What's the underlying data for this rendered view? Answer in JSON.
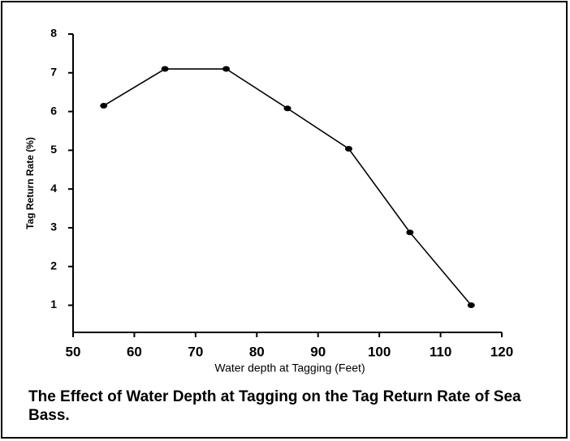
{
  "chart_data": {
    "type": "line",
    "title": "The Effect of Water Depth at Tagging on the Tag Return Rate of Sea Bass.",
    "x_label": "Water depth at Tagging (Feet)",
    "y_label": "Tag Return Rate (%)",
    "x": [
      55,
      65,
      75,
      85,
      95,
      105,
      115
    ],
    "series": [
      {
        "name": "Tag Return Rate",
        "color": "#000000",
        "values": [
          6.15,
          7.1,
          7.1,
          6.08,
          5.04,
          2.88,
          1.0
        ]
      }
    ],
    "xlim": [
      50,
      120
    ],
    "xticks": [
      50,
      60,
      70,
      80,
      90,
      100,
      110,
      120
    ],
    "ylim": [
      0.3,
      8
    ],
    "yticks": [
      1,
      2,
      3,
      4,
      5,
      6,
      7,
      8
    ],
    "grid": false
  }
}
